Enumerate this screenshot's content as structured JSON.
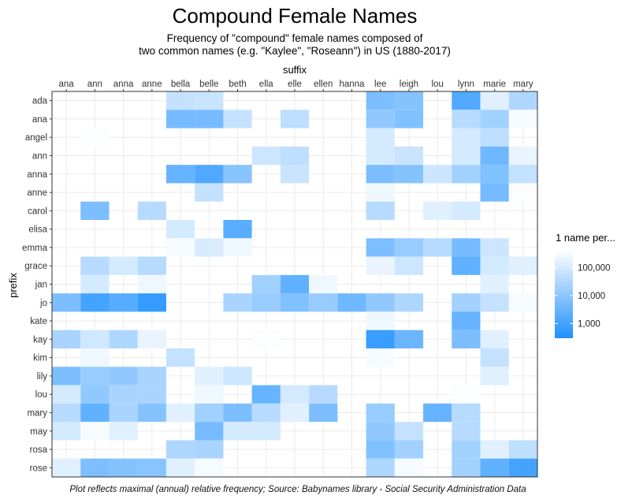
{
  "chart_data": {
    "type": "heatmap",
    "title": "Compound Female Names",
    "subtitle_lines": [
      "Frequency of \"compound\" female names composed of",
      "two common names (e.g. \"Kaylee\", \"Roseann\") in US (1880-2017)"
    ],
    "xlabel": "suffix",
    "ylabel": "prefix",
    "x_position": "top",
    "grid": true,
    "caption": "Plot reflects maximal (annual) relative frequency; Source: Babynames library - Social Security Administration Data",
    "legend": {
      "title": "1 name per...",
      "position": "right",
      "scale": "log",
      "breaks": [
        100000,
        10000,
        1000
      ],
      "break_labels": [
        "100,000",
        "10,000",
        "1,000"
      ],
      "range": [
        300,
        400000
      ],
      "color_high": "#ffffff",
      "color_low": "#1e90ff"
    },
    "x_categories": [
      "ana",
      "ann",
      "anna",
      "anne",
      "bella",
      "belle",
      "beth",
      "ella",
      "elle",
      "ellen",
      "hanna",
      "lee",
      "leigh",
      "lou",
      "lynn",
      "marie",
      "mary"
    ],
    "y_categories": [
      "ada",
      "ana",
      "angel",
      "ann",
      "anna",
      "anne",
      "carol",
      "elisa",
      "emma",
      "grace",
      "jan",
      "jo",
      "kate",
      "kay",
      "kim",
      "lily",
      "lou",
      "mary",
      "may",
      "rosa",
      "rose"
    ],
    "cells": [
      [
        "ada",
        "bella",
        60000
      ],
      [
        "ada",
        "belle",
        70000
      ],
      [
        "ada",
        "lee",
        6000
      ],
      [
        "ada",
        "leigh",
        8000
      ],
      [
        "ada",
        "lynn",
        1500
      ],
      [
        "ada",
        "marie",
        150000
      ],
      [
        "ada",
        "mary",
        30000
      ],
      [
        "ana",
        "bella",
        5000
      ],
      [
        "ana",
        "belle",
        5000
      ],
      [
        "ana",
        "beth",
        60000
      ],
      [
        "ana",
        "elle",
        50000
      ],
      [
        "ana",
        "lee",
        12000
      ],
      [
        "ana",
        "leigh",
        7000
      ],
      [
        "ana",
        "lynn",
        40000
      ],
      [
        "ana",
        "marie",
        20000
      ],
      [
        "ana",
        "mary",
        300000
      ],
      [
        "angel",
        "ann",
        350000
      ],
      [
        "angel",
        "lee",
        100000
      ],
      [
        "angel",
        "lynn",
        100000
      ],
      [
        "angel",
        "marie",
        50000
      ],
      [
        "ann",
        "ella",
        80000
      ],
      [
        "ann",
        "elle",
        50000
      ],
      [
        "ann",
        "lee",
        100000
      ],
      [
        "ann",
        "leigh",
        70000
      ],
      [
        "ann",
        "lynn",
        100000
      ],
      [
        "ann",
        "marie",
        4000
      ],
      [
        "ann",
        "mary",
        200000
      ],
      [
        "anna",
        "bella",
        3000
      ],
      [
        "anna",
        "belle",
        1500
      ],
      [
        "anna",
        "beth",
        9000
      ],
      [
        "anna",
        "elle",
        70000
      ],
      [
        "anna",
        "lee",
        6000
      ],
      [
        "anna",
        "leigh",
        8000
      ],
      [
        "anna",
        "lou",
        80000
      ],
      [
        "anna",
        "lynn",
        20000
      ],
      [
        "anna",
        "marie",
        7000
      ],
      [
        "anna",
        "mary",
        60000
      ],
      [
        "anne",
        "belle",
        60000
      ],
      [
        "anne",
        "lee",
        250000
      ],
      [
        "anne",
        "marie",
        5000
      ],
      [
        "anne",
        "mary",
        350000
      ],
      [
        "carol",
        "ann",
        6000
      ],
      [
        "carol",
        "anne",
        40000
      ],
      [
        "carol",
        "lee",
        40000
      ],
      [
        "carol",
        "lou",
        150000
      ],
      [
        "carol",
        "lynn",
        100000
      ],
      [
        "elisa",
        "bella",
        100000
      ],
      [
        "elisa",
        "beth",
        2000
      ],
      [
        "emma",
        "bella",
        300000
      ],
      [
        "emma",
        "belle",
        120000
      ],
      [
        "emma",
        "beth",
        250000
      ],
      [
        "emma",
        "lee",
        6000
      ],
      [
        "emma",
        "leigh",
        15000
      ],
      [
        "emma",
        "lou",
        40000
      ],
      [
        "emma",
        "lynn",
        5000
      ],
      [
        "emma",
        "marie",
        80000
      ],
      [
        "grace",
        "ann",
        40000
      ],
      [
        "grace",
        "anna",
        100000
      ],
      [
        "grace",
        "anne",
        40000
      ],
      [
        "grace",
        "lee",
        200000
      ],
      [
        "grace",
        "leigh",
        80000
      ],
      [
        "grace",
        "lynn",
        2500
      ],
      [
        "grace",
        "marie",
        100000
      ],
      [
        "grace",
        "mary",
        150000
      ],
      [
        "jan",
        "ann",
        100000
      ],
      [
        "jan",
        "anne",
        250000
      ],
      [
        "jan",
        "ella",
        20000
      ],
      [
        "jan",
        "elle",
        2500
      ],
      [
        "jan",
        "ellen",
        250000
      ],
      [
        "jan",
        "marie",
        150000
      ],
      [
        "jo",
        "ana",
        6000
      ],
      [
        "jo",
        "ann",
        1000
      ],
      [
        "jo",
        "anna",
        1800
      ],
      [
        "jo",
        "anne",
        600
      ],
      [
        "jo",
        "beth",
        25000
      ],
      [
        "jo",
        "ella",
        15000
      ],
      [
        "jo",
        "elle",
        7000
      ],
      [
        "jo",
        "ellen",
        15000
      ],
      [
        "jo",
        "hanna",
        4000
      ],
      [
        "jo",
        "lee",
        12000
      ],
      [
        "jo",
        "leigh",
        30000
      ],
      [
        "jo",
        "lynn",
        20000
      ],
      [
        "jo",
        "marie",
        60000
      ],
      [
        "jo",
        "mary",
        300000
      ],
      [
        "kate",
        "lee",
        250000
      ],
      [
        "kate",
        "lynn",
        3000
      ],
      [
        "kay",
        "ana",
        25000
      ],
      [
        "kay",
        "ann",
        90000
      ],
      [
        "kay",
        "anna",
        30000
      ],
      [
        "kay",
        "anne",
        200000
      ],
      [
        "kay",
        "ella",
        350000
      ],
      [
        "kay",
        "lee",
        700
      ],
      [
        "kay",
        "leigh",
        3500
      ],
      [
        "kay",
        "lynn",
        6000
      ],
      [
        "kay",
        "marie",
        150000
      ],
      [
        "kim",
        "ann",
        250000
      ],
      [
        "kim",
        "bella",
        60000
      ],
      [
        "kim",
        "lee",
        300000
      ],
      [
        "kim",
        "marie",
        60000
      ],
      [
        "lily",
        "ana",
        6000
      ],
      [
        "lily",
        "ann",
        15000
      ],
      [
        "lily",
        "anna",
        12000
      ],
      [
        "lily",
        "anne",
        25000
      ],
      [
        "lily",
        "belle",
        150000
      ],
      [
        "lily",
        "beth",
        80000
      ],
      [
        "lily",
        "marie",
        150000
      ],
      [
        "lou",
        "ana",
        100000
      ],
      [
        "lou",
        "ann",
        12000
      ],
      [
        "lou",
        "anna",
        25000
      ],
      [
        "lou",
        "anne",
        25000
      ],
      [
        "lou",
        "belle",
        250000
      ],
      [
        "lou",
        "ella",
        3000
      ],
      [
        "lou",
        "elle",
        100000
      ],
      [
        "lou",
        "ellen",
        40000
      ],
      [
        "lou",
        "lynn",
        350000
      ],
      [
        "mary",
        "ana",
        40000
      ],
      [
        "mary",
        "ann",
        2500
      ],
      [
        "mary",
        "anna",
        25000
      ],
      [
        "mary",
        "anne",
        8000
      ],
      [
        "mary",
        "bella",
        150000
      ],
      [
        "mary",
        "belle",
        20000
      ],
      [
        "mary",
        "beth",
        6000
      ],
      [
        "mary",
        "ella",
        40000
      ],
      [
        "mary",
        "elle",
        150000
      ],
      [
        "mary",
        "ellen",
        6000
      ],
      [
        "mary",
        "lee",
        15000
      ],
      [
        "mary",
        "lou",
        3000
      ],
      [
        "mary",
        "lynn",
        40000
      ],
      [
        "may",
        "ana",
        100000
      ],
      [
        "may",
        "ann",
        300000
      ],
      [
        "may",
        "anna",
        150000
      ],
      [
        "may",
        "belle",
        5000
      ],
      [
        "may",
        "beth",
        100000
      ],
      [
        "may",
        "ella",
        100000
      ],
      [
        "may",
        "lee",
        12000
      ],
      [
        "may",
        "leigh",
        60000
      ],
      [
        "may",
        "lynn",
        40000
      ],
      [
        "rosa",
        "bella",
        30000
      ],
      [
        "rosa",
        "belle",
        25000
      ],
      [
        "rosa",
        "lee",
        7000
      ],
      [
        "rosa",
        "leigh",
        20000
      ],
      [
        "rosa",
        "lynn",
        20000
      ],
      [
        "rosa",
        "marie",
        150000
      ],
      [
        "rosa",
        "mary",
        50000
      ],
      [
        "rose",
        "ana",
        150000
      ],
      [
        "rose",
        "ann",
        6000
      ],
      [
        "rose",
        "anna",
        8000
      ],
      [
        "rose",
        "anne",
        9000
      ],
      [
        "rose",
        "bella",
        150000
      ],
      [
        "rose",
        "belle",
        300000
      ],
      [
        "rose",
        "lee",
        30000
      ],
      [
        "rose",
        "leigh",
        300000
      ],
      [
        "rose",
        "lynn",
        20000
      ],
      [
        "rose",
        "marie",
        2500
      ],
      [
        "rose",
        "mary",
        1000
      ]
    ]
  }
}
